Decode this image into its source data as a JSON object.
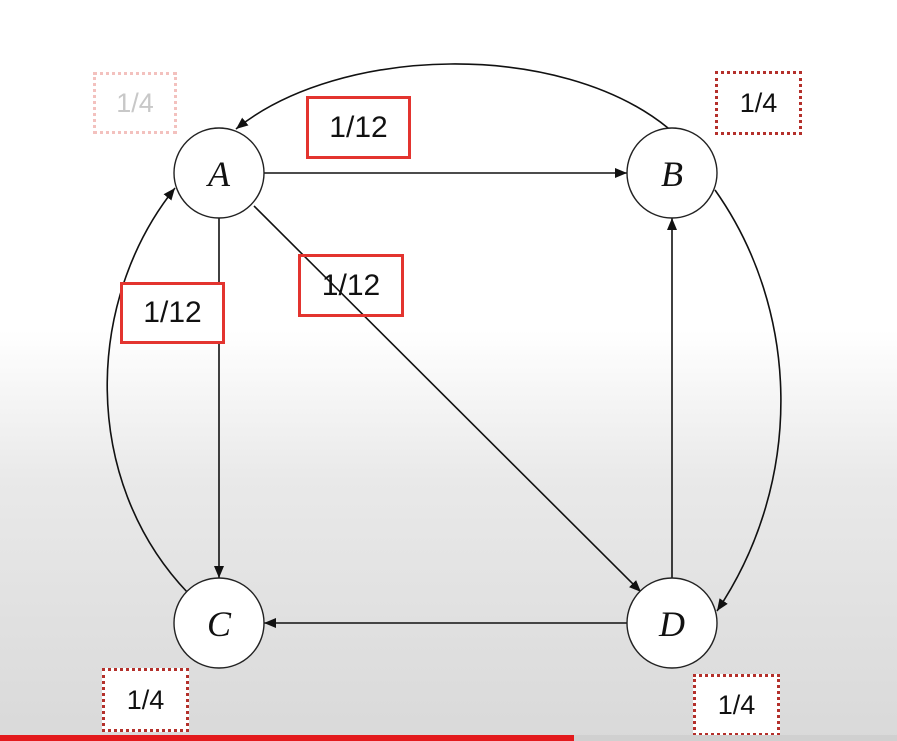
{
  "nodes": [
    {
      "id": "A",
      "label": "A"
    },
    {
      "id": "B",
      "label": "B"
    },
    {
      "id": "C",
      "label": "C"
    },
    {
      "id": "D",
      "label": "D"
    }
  ],
  "edges": [
    {
      "from": "A",
      "to": "B",
      "weight": "1/12"
    },
    {
      "from": "A",
      "to": "D",
      "weight": "1/12"
    },
    {
      "from": "A",
      "to": "C",
      "weight": "1/12"
    },
    {
      "from": "B",
      "to": "A"
    },
    {
      "from": "B",
      "to": "D"
    },
    {
      "from": "C",
      "to": "A"
    },
    {
      "from": "D",
      "to": "B"
    },
    {
      "from": "D",
      "to": "C"
    }
  ],
  "node_values": {
    "A": "1/4",
    "B": "1/4",
    "C": "1/4",
    "D": "1/4"
  },
  "colors": {
    "highlight": "#e3342f",
    "faded": "#f3c1be",
    "progress": "#e3191c"
  },
  "video_progress": 0.64
}
